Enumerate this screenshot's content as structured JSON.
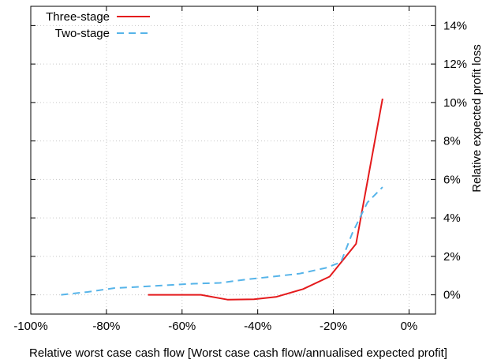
{
  "chart_data": {
    "type": "line",
    "title": "",
    "xlabel": "Relative worst case cash flow [Worst case cash flow/annualised expected profit]",
    "ylabel": "Relative expected profit loss",
    "xlim": [
      -100,
      7
    ],
    "ylim": [
      -1,
      15
    ],
    "x_ticks": [
      -100,
      -80,
      -60,
      -40,
      -20,
      0
    ],
    "x_tick_labels": [
      "-100%",
      "-80%",
      "-60%",
      "-40%",
      "-20%",
      "0%"
    ],
    "y_ticks": [
      0,
      2,
      4,
      6,
      8,
      10,
      12,
      14
    ],
    "y_tick_labels": [
      "0%",
      "2%",
      "4%",
      "6%",
      "8%",
      "10%",
      "12%",
      "14%"
    ],
    "y_axis_side": "right",
    "grid": true,
    "legend_position": "top-left",
    "series": [
      {
        "name": "Three-stage",
        "color": "#e41a1c",
        "style": "solid",
        "x": [
          -69,
          -55,
          -48,
          -41,
          -35,
          -28,
          -21,
          -14,
          -7
        ],
        "y": [
          0,
          0,
          -0.25,
          -0.23,
          -0.1,
          0.3,
          0.95,
          2.65,
          10.2
        ]
      },
      {
        "name": "Two-stage",
        "color": "#56b4e9",
        "style": "dashed",
        "x": [
          -92,
          -85,
          -78,
          -71,
          -64,
          -57,
          -50,
          -43,
          -36,
          -29,
          -22,
          -18,
          -15,
          -11,
          -7
        ],
        "y": [
          0,
          0.15,
          0.35,
          0.42,
          0.5,
          0.58,
          0.62,
          0.8,
          0.95,
          1.1,
          1.4,
          1.7,
          3.2,
          4.8,
          5.6
        ]
      }
    ]
  }
}
